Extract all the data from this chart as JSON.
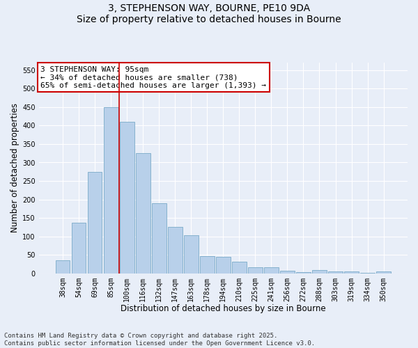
{
  "title1": "3, STEPHENSON WAY, BOURNE, PE10 9DA",
  "title2": "Size of property relative to detached houses in Bourne",
  "xlabel": "Distribution of detached houses by size in Bourne",
  "ylabel": "Number of detached properties",
  "categories": [
    "38sqm",
    "54sqm",
    "69sqm",
    "85sqm",
    "100sqm",
    "116sqm",
    "132sqm",
    "147sqm",
    "163sqm",
    "178sqm",
    "194sqm",
    "210sqm",
    "225sqm",
    "241sqm",
    "256sqm",
    "272sqm",
    "288sqm",
    "303sqm",
    "319sqm",
    "334sqm",
    "350sqm"
  ],
  "values": [
    35,
    137,
    275,
    450,
    410,
    325,
    190,
    125,
    103,
    47,
    45,
    32,
    16,
    16,
    7,
    4,
    9,
    5,
    5,
    2,
    5
  ],
  "bar_color": "#b8d0ea",
  "bar_edge_color": "#7aaac8",
  "vline_color": "#cc0000",
  "vline_xindex": 3.5,
  "annotation_text": "3 STEPHENSON WAY: 95sqm\n← 34% of detached houses are smaller (738)\n65% of semi-detached houses are larger (1,393) →",
  "ylim": [
    0,
    570
  ],
  "yticks": [
    0,
    50,
    100,
    150,
    200,
    250,
    300,
    350,
    400,
    450,
    500,
    550
  ],
  "footer": "Contains HM Land Registry data © Crown copyright and database right 2025.\nContains public sector information licensed under the Open Government Licence v3.0.",
  "background_color": "#e8eef8",
  "grid_color": "#ffffff",
  "title_fontsize": 10,
  "axis_label_fontsize": 8.5,
  "tick_fontsize": 7,
  "footer_fontsize": 6.5,
  "annot_fontsize": 8
}
